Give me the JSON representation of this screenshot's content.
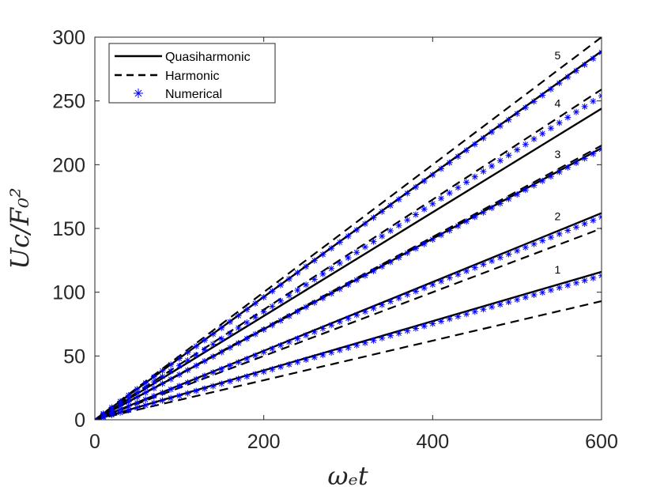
{
  "chart_data": {
    "type": "line",
    "xlabel": "ωₑt",
    "ylabel": "Uc/F₀²",
    "xlim": [
      0,
      600
    ],
    "ylim": [
      0,
      300
    ],
    "xticks": [
      0,
      200,
      400,
      600
    ],
    "yticks": [
      0,
      50,
      100,
      150,
      200,
      250,
      300
    ],
    "grid": false,
    "legend_position": "top-left",
    "legend": [
      {
        "label": "Quasiharmonic",
        "style": "solid",
        "color": "#000000"
      },
      {
        "label": "Harmonic",
        "style": "dashed",
        "color": "#000000"
      },
      {
        "label": "Numerical",
        "style": "star-markers",
        "color": "#0000ff"
      }
    ],
    "curves": [
      {
        "label": "1",
        "quasiharmonic": 116,
        "harmonic": 93,
        "numerical": 113
      },
      {
        "label": "2",
        "quasiharmonic": 162,
        "harmonic": 150,
        "numerical": 159
      },
      {
        "label": "3",
        "quasiharmonic": 213,
        "harmonic": 215,
        "numerical": 212
      },
      {
        "label": "4",
        "quasiharmonic": 244,
        "harmonic": 259,
        "numerical": 254
      },
      {
        "label": "5",
        "quasiharmonic": 289,
        "harmonic": 300,
        "numerical": 288
      }
    ],
    "curve_end_note": "values are the y value of each series at x = 600; each series is a straight line from the origin"
  }
}
